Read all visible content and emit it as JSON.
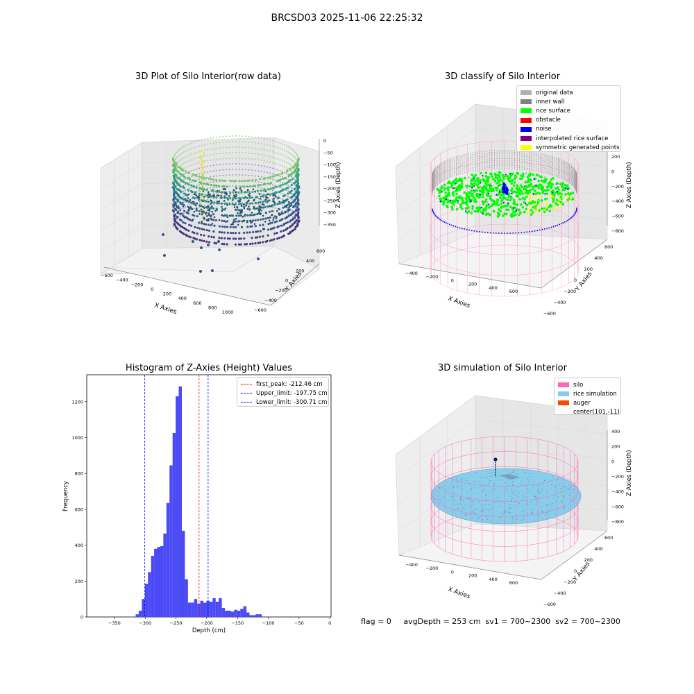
{
  "suptitle": "BRCSD03 2025-11-06 22:25:32",
  "panel1": {
    "title": "3D Plot of Silo Interior(row data)",
    "xlabel": "X Axies",
    "ylabel": "Y Axies",
    "zlabel": "Z Axies (Depth)",
    "x_ticks": [
      "−600",
      "−400",
      "−200",
      "0",
      "200",
      "400",
      "600",
      "800",
      "1000"
    ],
    "y_ticks": [
      "600",
      "400",
      "200",
      "0",
      "−200",
      "−400",
      "−600"
    ],
    "z_ticks": [
      "0",
      "−50",
      "−100",
      "−150",
      "−200",
      "−250",
      "−300",
      "−350"
    ]
  },
  "panel2": {
    "title": "3D classify of Silo Interior",
    "xlabel": "X Axies",
    "ylabel": "Y Axies",
    "zlabel": "Z Axies (Depth)",
    "x_ticks": [
      "−400",
      "−200",
      "0",
      "200",
      "400",
      "600"
    ],
    "y_ticks": [
      "600",
      "400",
      "200",
      "0",
      "−200",
      "−400",
      "−600"
    ],
    "z_ticks": [
      "200",
      "0",
      "−200",
      "−400",
      "−600",
      "−800"
    ],
    "legend": [
      {
        "label": "original data",
        "color": "#b0b0b0"
      },
      {
        "label": "inner wall",
        "color": "#808080"
      },
      {
        "label": "rice surface",
        "color": "#00ff00"
      },
      {
        "label": "obstacle",
        "color": "#ff0000"
      },
      {
        "label": "noise",
        "color": "#0000ff"
      },
      {
        "label": "interpolated rice surface",
        "color": "#800080"
      },
      {
        "label": "symmetric generated points",
        "color": "#ffff00"
      }
    ]
  },
  "panel4": {
    "title": "3D simulation of Silo Interior",
    "xlabel": "X Axies",
    "ylabel": "Y Axies",
    "zlabel": "Z Axies (Depth)",
    "x_ticks": [
      "−400",
      "−200",
      "0",
      "200",
      "400",
      "600"
    ],
    "y_ticks": [
      "600",
      "400",
      "200",
      "0",
      "−200",
      "−400",
      "−600"
    ],
    "z_ticks": [
      "400",
      "200",
      "0",
      "−200",
      "−400",
      "−600",
      "−800"
    ],
    "legend": [
      {
        "label": "silo",
        "color": "#ff69b4"
      },
      {
        "label": "rice simulation",
        "color": "#87ceeb"
      },
      {
        "label": "auger",
        "color": "#ff4500"
      },
      {
        "label": "center(101,-11)",
        "color": ""
      }
    ]
  },
  "footer": "flag = 0     avgDepth = 253 cm  sv1 = 700~2300  sv2 = 700~2300",
  "chart_data": {
    "type": "bar",
    "title": "Histogram of Z-Axies (Height) Values",
    "xlabel": "Depth (cm)",
    "ylabel": "Frequency",
    "xlim": [
      -395,
      2
    ],
    "ylim": [
      0,
      1350
    ],
    "x_ticks": [
      -350,
      -300,
      -250,
      -200,
      -150,
      -100,
      -50,
      0
    ],
    "x_tick_labels": [
      "−350",
      "−300",
      "−250",
      "−200",
      "−150",
      "−100",
      "−50",
      "0"
    ],
    "y_ticks": [
      0,
      200,
      400,
      600,
      800,
      1000,
      1200
    ],
    "y_tick_labels": [
      "0",
      "200",
      "400",
      "600",
      "800",
      "1000",
      "1200"
    ],
    "bar_color": "#4a4af7",
    "bin_edges": [
      -315.5,
      -310.5,
      -305.5,
      -300.5,
      -295.5,
      -290.5,
      -285.5,
      -280.5,
      -275.5,
      -270.5,
      -265.5,
      -260.5,
      -255.5,
      -250.5,
      -245.5,
      -240.5,
      -235.5,
      -230.5,
      -225.5,
      -220.5,
      -215.5,
      -210.5,
      -205.5,
      -200.5,
      -195.5,
      -190.5,
      -185.5,
      -180.5,
      -175.5,
      -170.5,
      -165.5,
      -160.5,
      -155.5,
      -150.5,
      -145.5,
      -140.5,
      -135.5,
      -130.5,
      -125.5,
      -120.5,
      -115.5,
      -110.5,
      -105.5,
      -100.5,
      -95.5,
      -90.5,
      -85.5,
      -80.5,
      -75.5,
      -70.5,
      -65.5,
      -60.5,
      -55.5,
      -50.5,
      -45.5,
      -40.5,
      -35.5,
      -30.5,
      -25.5,
      -20.5,
      -15.5
    ],
    "counts": [
      15,
      35,
      100,
      185,
      250,
      340,
      380,
      390,
      395,
      465,
      635,
      845,
      1025,
      1230,
      1285,
      480,
      210,
      80,
      80,
      100,
      75,
      90,
      80,
      90,
      85,
      105,
      85,
      105,
      50,
      35,
      35,
      30,
      40,
      35,
      45,
      60,
      25,
      10,
      10,
      15,
      15,
      0,
      0,
      0,
      0,
      0,
      0,
      0,
      0,
      0,
      0,
      0,
      0,
      0,
      0,
      0,
      0,
      0,
      0,
      0
    ],
    "lines": [
      {
        "name": "first_peak: -212.46 cm",
        "x": -212.46,
        "color": "#ff0000"
      },
      {
        "name": "Upper_limit: -197.75 cm",
        "x": -197.75,
        "color": "#0000ff"
      },
      {
        "name": "Lower_limit: -300.71 cm",
        "x": -300.71,
        "color": "#0000ff"
      }
    ]
  }
}
